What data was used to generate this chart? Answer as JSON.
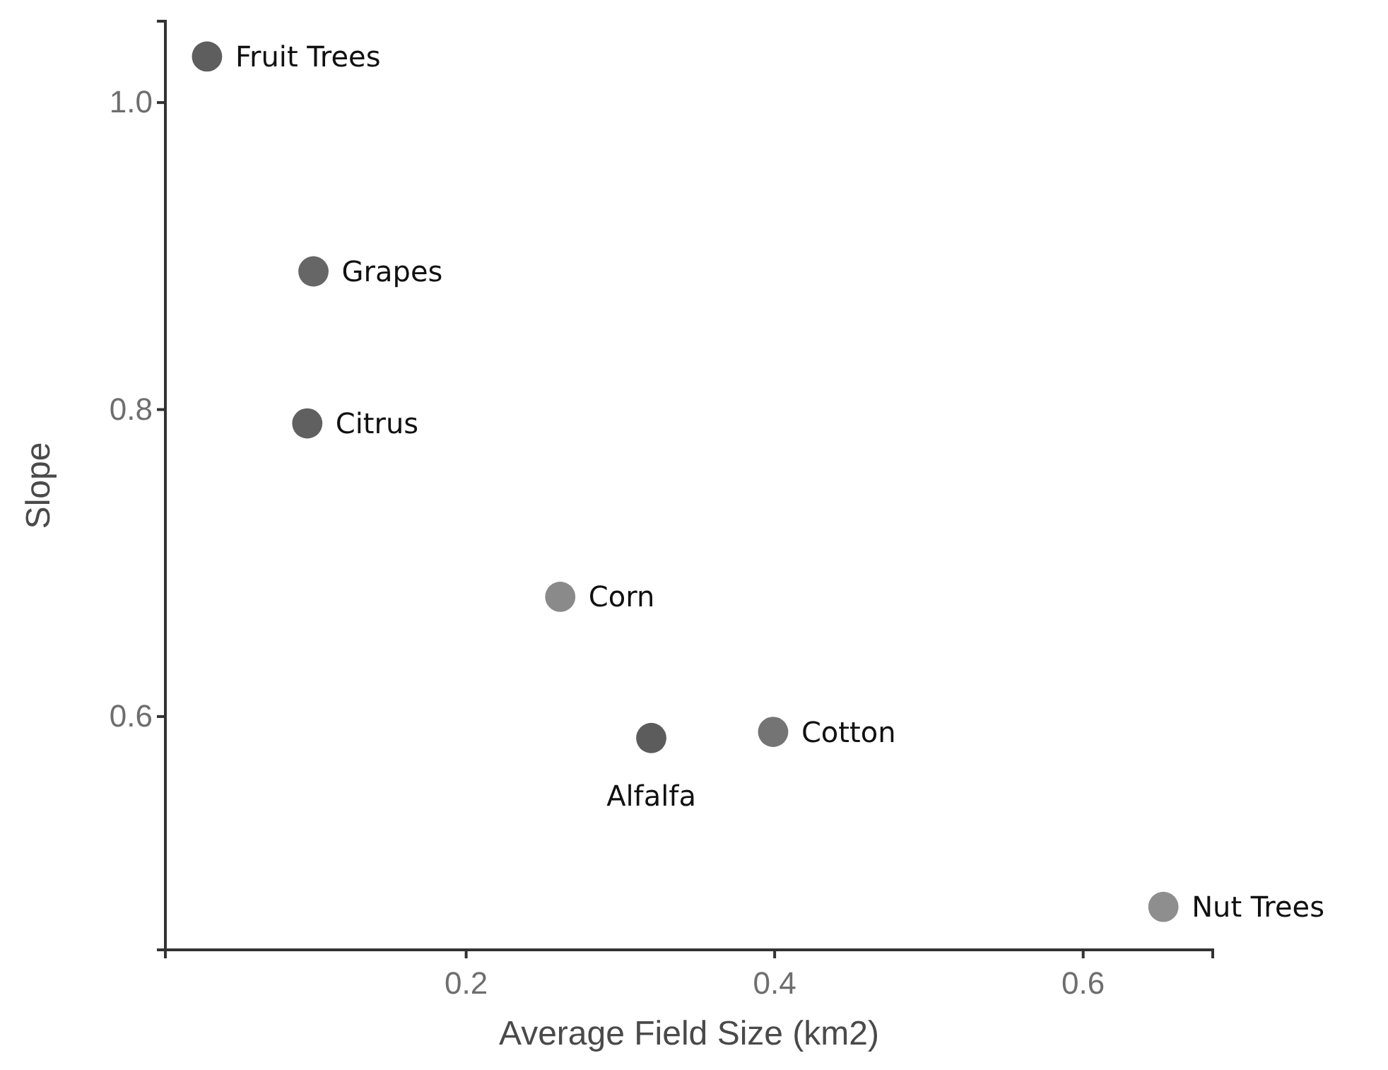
{
  "chart_data": {
    "type": "scatter",
    "xlabel": "Average Field Size (km2)",
    "ylabel": "Slope",
    "x": [
      0.032,
      0.101,
      0.097,
      0.261,
      0.32,
      0.399,
      0.652
    ],
    "values": [
      1.03,
      0.89,
      0.791,
      0.678,
      0.586,
      0.59,
      0.476
    ],
    "colors": [
      "#5e5e5e",
      "#666666",
      "#606060",
      "#8a8a8a",
      "#5c5c5c",
      "#747474",
      "#8e8e8e"
    ],
    "marker": "circle",
    "grid": false,
    "xlim": [
      0.005,
      0.684
    ],
    "xticks": [
      {
        "value": 0.2,
        "label": "0.2"
      },
      {
        "value": 0.4,
        "label": "0.4"
      },
      {
        "value": 0.6,
        "label": "0.6"
      }
    ],
    "ylim": [
      0.448,
      1.053
    ],
    "yticks": [
      {
        "value": 0.6,
        "label": "0.6"
      },
      {
        "value": 0.8,
        "label": "0.8"
      },
      {
        "value": 1.0,
        "label": "1.0"
      }
    ],
    "annotations": [
      {
        "text": "Fruit Trees",
        "x": 0.032,
        "y": 1.03
      },
      {
        "text": "Grapes",
        "x": 0.101,
        "y": 0.89
      },
      {
        "text": "Citrus",
        "x": 0.097,
        "y": 0.791
      },
      {
        "text": "Corn",
        "x": 0.261,
        "y": 0.678
      },
      {
        "text": "Alfalfa",
        "x": 0.32,
        "y": 0.586
      },
      {
        "text": "Cotton",
        "x": 0.399,
        "y": 0.59
      },
      {
        "text": "Nut Trees",
        "x": 0.652,
        "y": 0.476
      }
    ]
  }
}
